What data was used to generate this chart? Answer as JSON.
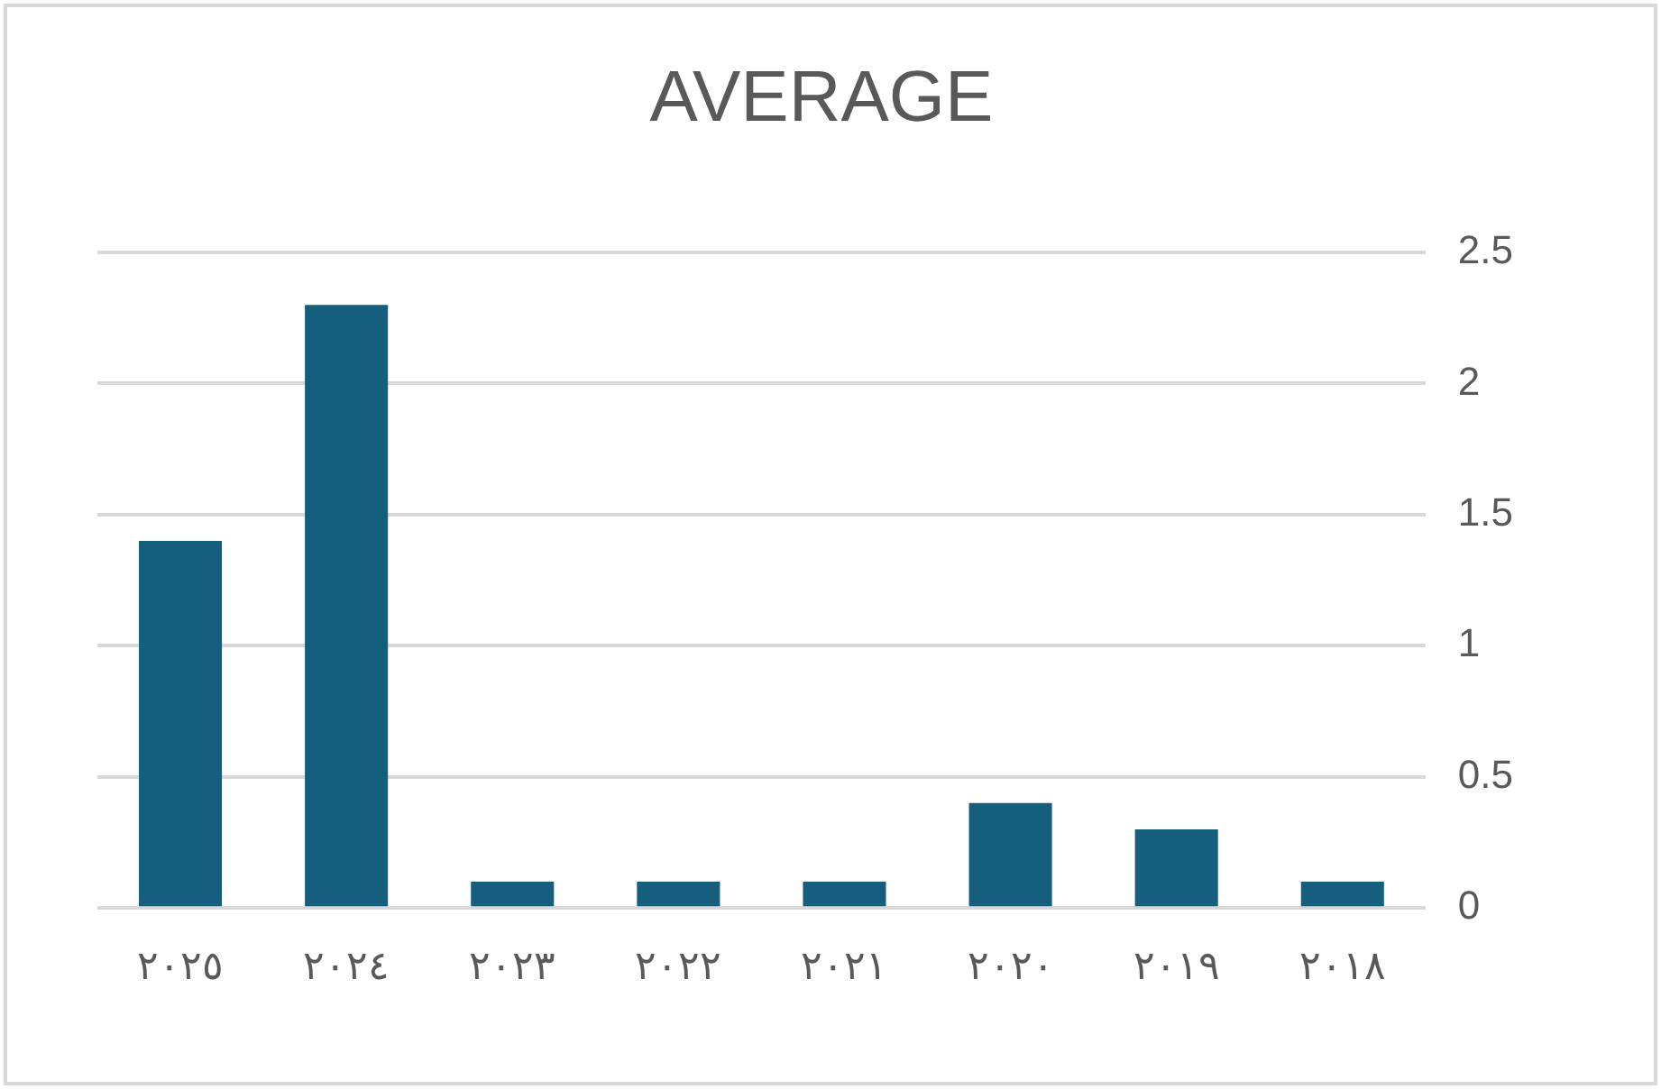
{
  "chart_data": {
    "type": "bar",
    "title": "AVERAGE",
    "categories": [
      "٢٠٢٥",
      "٢٠٢٤",
      "٢٠٢٣",
      "٢٠٢٢",
      "٢٠٢١",
      "٢٠٢٠",
      "٢٠١٩",
      "٢٠١٨"
    ],
    "values": [
      1.4,
      2.3,
      0.1,
      0.1,
      0.1,
      0.4,
      0.3,
      0.1
    ],
    "color": "#155e7e",
    "ylim": [
      0,
      2.5
    ],
    "yticks": [
      0,
      0.5,
      1,
      1.5,
      2,
      2.5
    ],
    "grid": "y",
    "legend": false
  }
}
